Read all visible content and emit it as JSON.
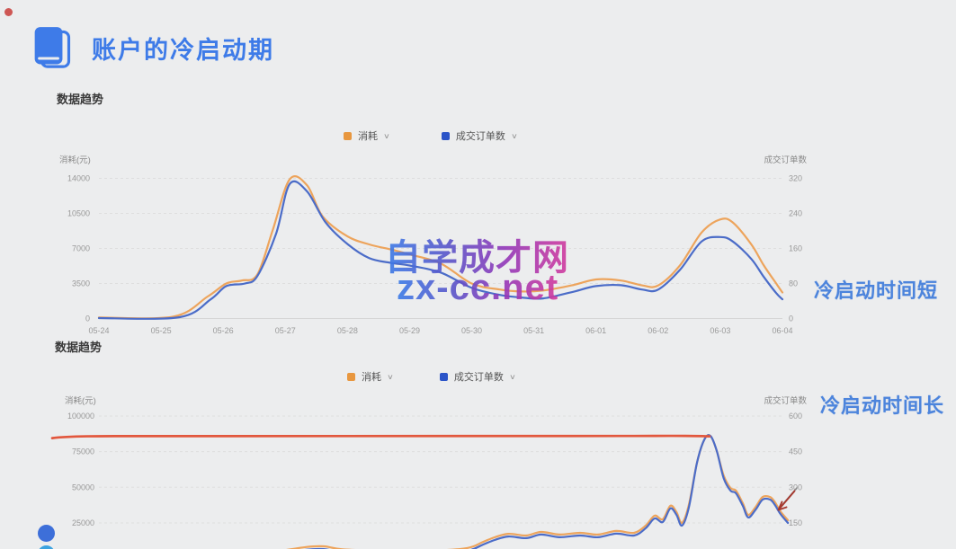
{
  "page": {
    "title_heading": "账户的冷启动期",
    "annotation_short": "冷启动时间短",
    "annotation_long": "冷启动时间长",
    "watermark_line1": "自学成才网",
    "watermark_line2": "zx-cc.net"
  },
  "colors": {
    "background": "#ECEDEE",
    "title_blue": "#3E7BE8",
    "annotation_blue": "#4C84DC",
    "series_orange": "#EDA45C",
    "series_blue": "#4B6CC8",
    "legend_orange": "#E8973F",
    "legend_blue": "#2B54C8",
    "flat_line_red": "#E2573D",
    "watermark_gradient_start": "#3C7CE8",
    "watermark_gradient_end": "#D23B9E"
  },
  "chart_data": [
    {
      "type": "line",
      "section_label": "数据趋势",
      "x_labels": [
        "05-24",
        "05-25",
        "05-26",
        "05-27",
        "05-28",
        "05-29",
        "05-30",
        "05-31",
        "06-01",
        "06-02",
        "06-03",
        "06-04"
      ],
      "y_left": {
        "title": "消耗(元)",
        "tick_labels": [
          "14000",
          "10500",
          "7000",
          "3500",
          "0"
        ],
        "range": [
          0,
          14000
        ]
      },
      "y_right": {
        "title": "成交订单数",
        "tick_labels": [
          "320",
          "240",
          "160",
          "80",
          "0"
        ],
        "range": [
          0,
          320
        ]
      },
      "legend": [
        {
          "label": "消耗",
          "color": "#E8973F"
        },
        {
          "label": "成交订单数",
          "color": "#2B54C8"
        }
      ],
      "grid": true,
      "annotation": "冷启动时间短",
      "series": [
        {
          "name": "消耗",
          "axis": "left",
          "color": "#EDA45C",
          "points": [
            [
              0,
              100
            ],
            [
              1.2,
              200
            ],
            [
              1.75,
              2200
            ],
            [
              2.05,
              3500
            ],
            [
              2.3,
              3800
            ],
            [
              2.55,
              4400
            ],
            [
              2.8,
              8900
            ],
            [
              3.07,
              13900
            ],
            [
              3.35,
              13300
            ],
            [
              3.6,
              10200
            ],
            [
              4.0,
              8200
            ],
            [
              4.35,
              7400
            ],
            [
              4.7,
              6900
            ],
            [
              5.0,
              6400
            ],
            [
              5.5,
              5500
            ],
            [
              6.0,
              3500
            ],
            [
              6.45,
              2900
            ],
            [
              6.8,
              2700
            ],
            [
              7.15,
              2800
            ],
            [
              7.6,
              3300
            ],
            [
              8.0,
              3900
            ],
            [
              8.4,
              3800
            ],
            [
              8.75,
              3300
            ],
            [
              9.0,
              3300
            ],
            [
              9.35,
              5300
            ],
            [
              9.7,
              8600
            ],
            [
              10.0,
              9900
            ],
            [
              10.2,
              9600
            ],
            [
              10.5,
              7400
            ],
            [
              10.7,
              5300
            ],
            [
              10.9,
              3500
            ],
            [
              11,
              2600
            ]
          ]
        },
        {
          "name": "成交订单数",
          "axis": "right",
          "color": "#4B6CC8",
          "points": [
            [
              0,
              1
            ],
            [
              1.3,
              3
            ],
            [
              1.8,
              44
            ],
            [
              2.05,
              74
            ],
            [
              2.35,
              80
            ],
            [
              2.55,
              97
            ],
            [
              2.85,
              193
            ],
            [
              3.07,
              307
            ],
            [
              3.35,
              290
            ],
            [
              3.65,
              219
            ],
            [
              4.0,
              170
            ],
            [
              4.35,
              138
            ],
            [
              4.7,
              127
            ],
            [
              5.0,
              121
            ],
            [
              5.5,
              105
            ],
            [
              6.0,
              70
            ],
            [
              6.45,
              54
            ],
            [
              6.8,
              48
            ],
            [
              7.15,
              46
            ],
            [
              7.6,
              60
            ],
            [
              8.0,
              74
            ],
            [
              8.4,
              76
            ],
            [
              8.75,
              66
            ],
            [
              9.0,
              66
            ],
            [
              9.35,
              111
            ],
            [
              9.7,
              176
            ],
            [
              10.0,
              186
            ],
            [
              10.2,
              176
            ],
            [
              10.5,
              136
            ],
            [
              10.7,
              95
            ],
            [
              10.9,
              58
            ],
            [
              11,
              44
            ]
          ]
        }
      ]
    },
    {
      "type": "line",
      "section_label": "数据趋势",
      "x_labels": [],
      "y_left": {
        "title": "消耗(元)",
        "tick_labels": [
          "100000",
          "75000",
          "50000",
          "25000"
        ],
        "range": [
          0,
          100000
        ]
      },
      "y_right": {
        "title": "成交订单数",
        "tick_labels": [
          "600",
          "450",
          "300",
          "150"
        ],
        "range": [
          0,
          600
        ]
      },
      "legend": [
        {
          "label": "消耗",
          "color": "#E8973F"
        },
        {
          "label": "成交订单数",
          "color": "#2B54C8"
        }
      ],
      "grid": true,
      "annotation": "冷启动时间长",
      "annotations_drawn": {
        "flat_line": {
          "color": "#E2573D",
          "approx_value_left": 86000
        },
        "arrow": "hand-drawn arrow pointing at series end"
      },
      "series": [
        {
          "name": "消耗",
          "axis": "left",
          "color": "#EDA45C",
          "points": [
            [
              0.25,
              4200
            ],
            [
              0.303,
              8100
            ],
            [
              0.329,
              8600
            ],
            [
              0.355,
              6600
            ],
            [
              0.408,
              5600
            ],
            [
              0.487,
              5600
            ],
            [
              0.539,
              7400
            ],
            [
              0.562,
              11700
            ],
            [
              0.579,
              14900
            ],
            [
              0.599,
              17400
            ],
            [
              0.625,
              16200
            ],
            [
              0.647,
              18700
            ],
            [
              0.674,
              16900
            ],
            [
              0.704,
              18100
            ],
            [
              0.73,
              16900
            ],
            [
              0.757,
              19400
            ],
            [
              0.783,
              18100
            ],
            [
              0.8,
              23200
            ],
            [
              0.813,
              30100
            ],
            [
              0.825,
              27600
            ],
            [
              0.836,
              37100
            ],
            [
              0.845,
              32600
            ],
            [
              0.853,
              25100
            ],
            [
              0.863,
              37600
            ],
            [
              0.875,
              67200
            ],
            [
              0.886,
              83700
            ],
            [
              0.895,
              85900
            ],
            [
              0.904,
              75500
            ],
            [
              0.914,
              58400
            ],
            [
              0.924,
              49500
            ],
            [
              0.932,
              47700
            ],
            [
              0.942,
              38900
            ],
            [
              0.95,
              30700
            ],
            [
              0.961,
              36400
            ],
            [
              0.971,
              43200
            ],
            [
              0.982,
              43200
            ],
            [
              0.989,
              39600
            ],
            [
              0.997,
              33200
            ],
            [
              1.008,
              26900
            ]
          ]
        },
        {
          "name": "成交订单数",
          "axis": "right",
          "color": "#4B6CC8",
          "points": [
            [
              0.25,
              14
            ],
            [
              0.303,
              37
            ],
            [
              0.329,
              40
            ],
            [
              0.355,
              28
            ],
            [
              0.408,
              22
            ],
            [
              0.487,
              22
            ],
            [
              0.539,
              33
            ],
            [
              0.562,
              59
            ],
            [
              0.579,
              78
            ],
            [
              0.599,
              93
            ],
            [
              0.625,
              86
            ],
            [
              0.647,
              101
            ],
            [
              0.674,
              90
            ],
            [
              0.704,
              97
            ],
            [
              0.73,
              90
            ],
            [
              0.757,
              105
            ],
            [
              0.783,
              97
            ],
            [
              0.8,
              128
            ],
            [
              0.813,
              169
            ],
            [
              0.825,
              154
            ],
            [
              0.836,
              211
            ],
            [
              0.845,
              184
            ],
            [
              0.853,
              139
            ],
            [
              0.863,
              214
            ],
            [
              0.875,
              403
            ],
            [
              0.886,
              502
            ],
            [
              0.895,
              515
            ],
            [
              0.904,
              453
            ],
            [
              0.914,
              339
            ],
            [
              0.924,
              286
            ],
            [
              0.932,
              275
            ],
            [
              0.942,
              222
            ],
            [
              0.95,
              173
            ],
            [
              0.961,
              207
            ],
            [
              0.971,
              248
            ],
            [
              0.982,
              248
            ],
            [
              0.989,
              226
            ],
            [
              0.997,
              188
            ],
            [
              1.008,
              150
            ]
          ]
        }
      ]
    }
  ]
}
